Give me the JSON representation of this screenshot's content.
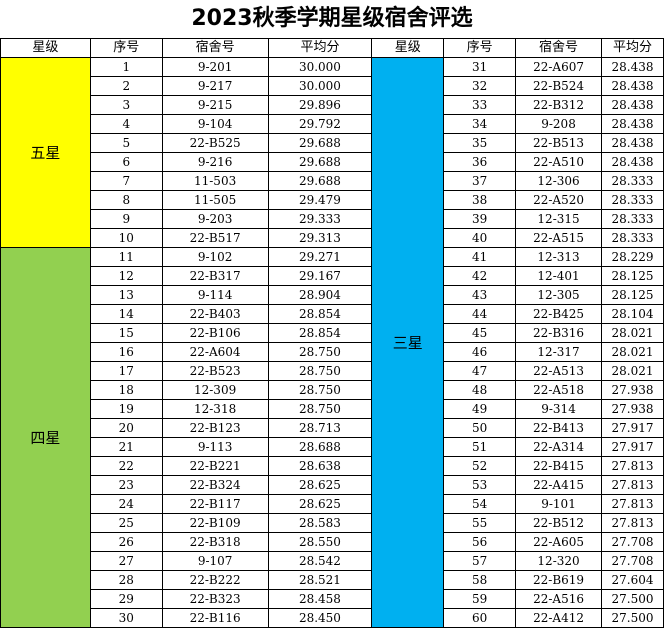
{
  "title": "2023秋季学期星级宿舍评选",
  "headers": [
    "星级",
    "序号",
    "宿舍号",
    "平均分",
    "星级",
    "序号",
    "宿舍号",
    "平均分"
  ],
  "grades": {
    "five": "五星",
    "four": "四星",
    "three": "三星"
  },
  "colors": {
    "five": "#ffff00",
    "four": "#92d050",
    "three": "#00b0f0"
  },
  "left_rows": [
    {
      "no": "1",
      "room": "9-201",
      "score": "30.000"
    },
    {
      "no": "2",
      "room": "9-217",
      "score": "30.000"
    },
    {
      "no": "3",
      "room": "9-215",
      "score": "29.896"
    },
    {
      "no": "4",
      "room": "9-104",
      "score": "29.792"
    },
    {
      "no": "5",
      "room": "22-B525",
      "score": "29.688"
    },
    {
      "no": "6",
      "room": "9-216",
      "score": "29.688"
    },
    {
      "no": "7",
      "room": "11-503",
      "score": "29.688"
    },
    {
      "no": "8",
      "room": "11-505",
      "score": "29.479"
    },
    {
      "no": "9",
      "room": "9-203",
      "score": "29.333"
    },
    {
      "no": "10",
      "room": "22-B517",
      "score": "29.313"
    },
    {
      "no": "11",
      "room": "9-102",
      "score": "29.271"
    },
    {
      "no": "12",
      "room": "22-B317",
      "score": "29.167"
    },
    {
      "no": "13",
      "room": "9-114",
      "score": "28.904"
    },
    {
      "no": "14",
      "room": "22-B403",
      "score": "28.854"
    },
    {
      "no": "15",
      "room": "22-B106",
      "score": "28.854"
    },
    {
      "no": "16",
      "room": "22-A604",
      "score": "28.750"
    },
    {
      "no": "17",
      "room": "22-B523",
      "score": "28.750"
    },
    {
      "no": "18",
      "room": "12-309",
      "score": "28.750"
    },
    {
      "no": "19",
      "room": "12-318",
      "score": "28.750"
    },
    {
      "no": "20",
      "room": "22-B123",
      "score": "28.713"
    },
    {
      "no": "21",
      "room": "9-113",
      "score": "28.688"
    },
    {
      "no": "22",
      "room": "22-B221",
      "score": "28.638"
    },
    {
      "no": "23",
      "room": "22-B324",
      "score": "28.625"
    },
    {
      "no": "24",
      "room": "22-B117",
      "score": "28.625"
    },
    {
      "no": "25",
      "room": "22-B109",
      "score": "28.583"
    },
    {
      "no": "26",
      "room": "22-B318",
      "score": "28.550"
    },
    {
      "no": "27",
      "room": "9-107",
      "score": "28.542"
    },
    {
      "no": "28",
      "room": "22-B222",
      "score": "28.521"
    },
    {
      "no": "29",
      "room": "22-B323",
      "score": "28.458"
    },
    {
      "no": "30",
      "room": "22-B116",
      "score": "28.450"
    }
  ],
  "right_rows": [
    {
      "no": "31",
      "room": "22-A607",
      "score": "28.438"
    },
    {
      "no": "32",
      "room": "22-B524",
      "score": "28.438"
    },
    {
      "no": "33",
      "room": "22-B312",
      "score": "28.438"
    },
    {
      "no": "34",
      "room": "9-208",
      "score": "28.438"
    },
    {
      "no": "35",
      "room": "22-B513",
      "score": "28.438"
    },
    {
      "no": "36",
      "room": "22-A510",
      "score": "28.438"
    },
    {
      "no": "37",
      "room": "12-306",
      "score": "28.333"
    },
    {
      "no": "38",
      "room": "22-A520",
      "score": "28.333"
    },
    {
      "no": "39",
      "room": "12-315",
      "score": "28.333"
    },
    {
      "no": "40",
      "room": "22-A515",
      "score": "28.333"
    },
    {
      "no": "41",
      "room": "12-313",
      "score": "28.229"
    },
    {
      "no": "42",
      "room": "12-401",
      "score": "28.125"
    },
    {
      "no": "43",
      "room": "12-305",
      "score": "28.125"
    },
    {
      "no": "44",
      "room": "22-B425",
      "score": "28.104"
    },
    {
      "no": "45",
      "room": "22-B316",
      "score": "28.021"
    },
    {
      "no": "46",
      "room": "12-317",
      "score": "28.021"
    },
    {
      "no": "47",
      "room": "22-A513",
      "score": "28.021"
    },
    {
      "no": "48",
      "room": "22-A518",
      "score": "27.938"
    },
    {
      "no": "49",
      "room": "9-314",
      "score": "27.938"
    },
    {
      "no": "50",
      "room": "22-B413",
      "score": "27.917"
    },
    {
      "no": "51",
      "room": "22-A314",
      "score": "27.917"
    },
    {
      "no": "52",
      "room": "22-B415",
      "score": "27.813"
    },
    {
      "no": "53",
      "room": "22-A415",
      "score": "27.813"
    },
    {
      "no": "54",
      "room": "9-101",
      "score": "27.813"
    },
    {
      "no": "55",
      "room": "22-B512",
      "score": "27.813"
    },
    {
      "no": "56",
      "room": "22-A605",
      "score": "27.708"
    },
    {
      "no": "57",
      "room": "12-320",
      "score": "27.708"
    },
    {
      "no": "58",
      "room": "22-B619",
      "score": "27.604"
    },
    {
      "no": "59",
      "room": "22-A516",
      "score": "27.500"
    },
    {
      "no": "60",
      "room": "22-A412",
      "score": "27.500"
    }
  ]
}
